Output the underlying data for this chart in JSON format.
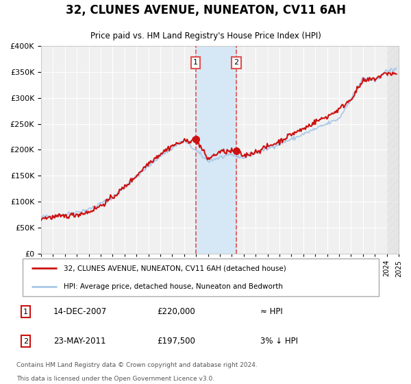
{
  "title": "32, CLUNES AVENUE, NUNEATON, CV11 6AH",
  "subtitle": "Price paid vs. HM Land Registry's House Price Index (HPI)",
  "legend_line1": "32, CLUNES AVENUE, NUNEATON, CV11 6AH (detached house)",
  "legend_line2": "HPI: Average price, detached house, Nuneaton and Bedworth",
  "footer1": "Contains HM Land Registry data © Crown copyright and database right 2024.",
  "footer2": "This data is licensed under the Open Government Licence v3.0.",
  "annotation1_date": "14-DEC-2007",
  "annotation1_price": "£220,000",
  "annotation1_hpi": "≈ HPI",
  "annotation2_date": "23-MAY-2011",
  "annotation2_price": "£197,500",
  "annotation2_hpi": "3% ↓ HPI",
  "sale1_x": 2007.96,
  "sale1_y": 220000,
  "sale2_x": 2011.39,
  "sale2_y": 197500,
  "vline1_x": 2007.96,
  "vline2_x": 2011.39,
  "shade_color": "#d6e8f5",
  "vline_color": "#e05050",
  "hpi_color": "#a8c8e8",
  "price_color": "#cc1111",
  "background_color": "#ffffff",
  "plot_bg_color": "#f0f0f0",
  "ylim": [
    0,
    400000
  ],
  "xlim": [
    1995,
    2025
  ],
  "yticks": [
    0,
    50000,
    100000,
    150000,
    200000,
    250000,
    300000,
    350000,
    400000
  ]
}
